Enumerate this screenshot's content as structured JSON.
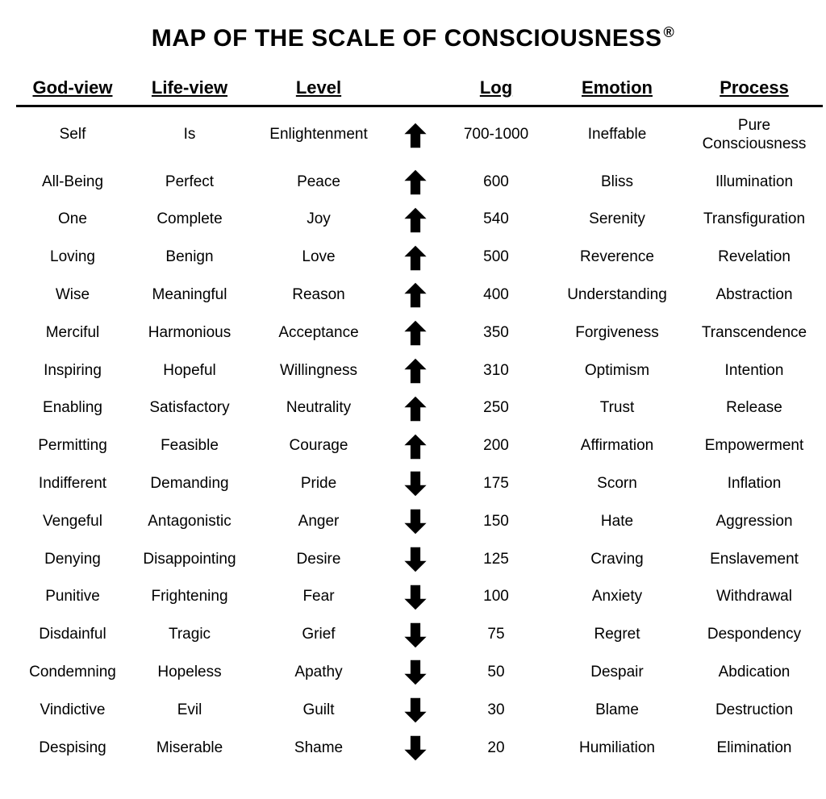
{
  "title_main": "MAP OF THE SCALE OF CONSCIOUSNESS",
  "title_sup": "®",
  "columns": [
    "God-view",
    "Life-view",
    "Level",
    "",
    "Log",
    "Emotion",
    "Process"
  ],
  "arrow": {
    "color": "#000000",
    "width": 34,
    "height": 34
  },
  "rows": [
    {
      "god_view": "Self",
      "life_view": "Is",
      "level": "Enlightenment",
      "dir": "up",
      "log": "700-1000",
      "emotion": "Ineffable",
      "process": "Pure Consciousness"
    },
    {
      "god_view": "All-Being",
      "life_view": "Perfect",
      "level": "Peace",
      "dir": "up",
      "log": "600",
      "emotion": "Bliss",
      "process": "Illumination"
    },
    {
      "god_view": "One",
      "life_view": "Complete",
      "level": "Joy",
      "dir": "up",
      "log": "540",
      "emotion": "Serenity",
      "process": "Transfiguration"
    },
    {
      "god_view": "Loving",
      "life_view": "Benign",
      "level": "Love",
      "dir": "up",
      "log": "500",
      "emotion": "Reverence",
      "process": "Revelation"
    },
    {
      "god_view": "Wise",
      "life_view": "Meaningful",
      "level": "Reason",
      "dir": "up",
      "log": "400",
      "emotion": "Understanding",
      "process": "Abstraction"
    },
    {
      "god_view": "Merciful",
      "life_view": "Harmonious",
      "level": "Acceptance",
      "dir": "up",
      "log": "350",
      "emotion": "Forgiveness",
      "process": "Transcendence"
    },
    {
      "god_view": "Inspiring",
      "life_view": "Hopeful",
      "level": "Willingness",
      "dir": "up",
      "log": "310",
      "emotion": "Optimism",
      "process": "Intention"
    },
    {
      "god_view": "Enabling",
      "life_view": "Satisfactory",
      "level": "Neutrality",
      "dir": "up",
      "log": "250",
      "emotion": "Trust",
      "process": "Release"
    },
    {
      "god_view": "Permitting",
      "life_view": "Feasible",
      "level": "Courage",
      "dir": "up",
      "log": "200",
      "emotion": "Affirmation",
      "process": "Empowerment"
    },
    {
      "god_view": "Indifferent",
      "life_view": "Demanding",
      "level": "Pride",
      "dir": "down",
      "log": "175",
      "emotion": "Scorn",
      "process": "Inflation"
    },
    {
      "god_view": "Vengeful",
      "life_view": "Antagonistic",
      "level": "Anger",
      "dir": "down",
      "log": "150",
      "emotion": "Hate",
      "process": "Aggression"
    },
    {
      "god_view": "Denying",
      "life_view": "Disappointing",
      "level": "Desire",
      "dir": "down",
      "log": "125",
      "emotion": "Craving",
      "process": "Enslavement"
    },
    {
      "god_view": "Punitive",
      "life_view": "Frightening",
      "level": "Fear",
      "dir": "down",
      "log": "100",
      "emotion": "Anxiety",
      "process": "Withdrawal"
    },
    {
      "god_view": "Disdainful",
      "life_view": "Tragic",
      "level": "Grief",
      "dir": "down",
      "log": "75",
      "emotion": "Regret",
      "process": "Despondency"
    },
    {
      "god_view": "Condemning",
      "life_view": "Hopeless",
      "level": "Apathy",
      "dir": "down",
      "log": "50",
      "emotion": "Despair",
      "process": "Abdication"
    },
    {
      "god_view": "Vindictive",
      "life_view": "Evil",
      "level": "Guilt",
      "dir": "down",
      "log": "30",
      "emotion": "Blame",
      "process": "Destruction"
    },
    {
      "god_view": "Despising",
      "life_view": "Miserable",
      "level": "Shame",
      "dir": "down",
      "log": "20",
      "emotion": "Humiliation",
      "process": "Elimination"
    }
  ]
}
